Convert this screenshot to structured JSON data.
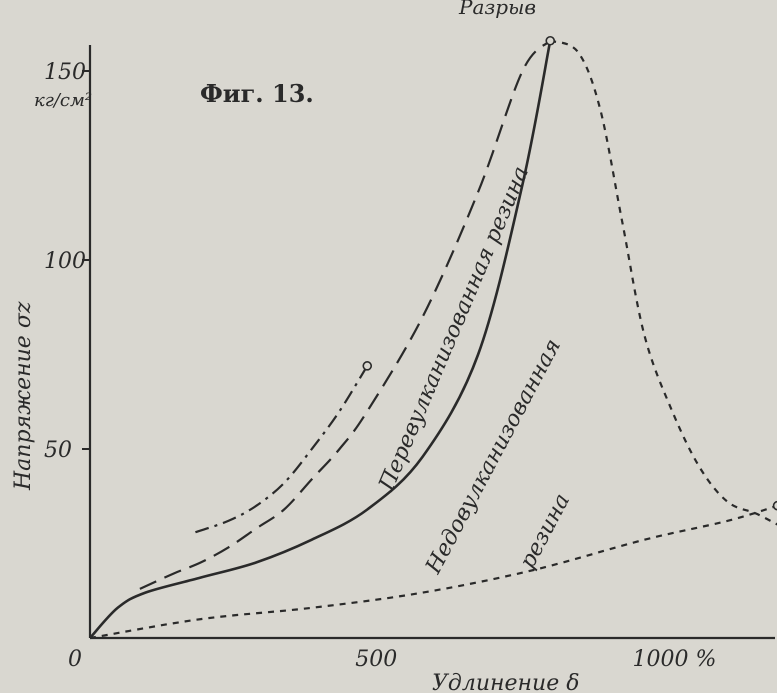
{
  "chart_data": {
    "type": "line",
    "title": "Фиг. 13.",
    "xlabel": "Удлинение δ",
    "ylabel": "Напряжение σz",
    "yunit": "кг/см²",
    "xlim": [
      0,
      1270
    ],
    "ylim": [
      0,
      160
    ],
    "x_ticks": [
      {
        "value": 0,
        "label": "0"
      },
      {
        "value": 500,
        "label": "500"
      },
      {
        "value": 1000,
        "label": "1000 %"
      }
    ],
    "y_ticks": [
      {
        "value": 50,
        "label": "50"
      },
      {
        "value": 100,
        "label": "100"
      },
      {
        "value": 150,
        "label": "150"
      }
    ],
    "annotations": {
      "rupture": "Разрыв",
      "overvulcanized": "Перевулканизованная резина",
      "undervulcanized_1": "Недовулканизованная",
      "undervulcanized_2": "резина"
    },
    "series": [
      {
        "name": "Перевулканизованная резина",
        "style": "solid",
        "points": [
          [
            0,
            0
          ],
          [
            50,
            8
          ],
          [
            100,
            12
          ],
          [
            200,
            16
          ],
          [
            300,
            20
          ],
          [
            400,
            26
          ],
          [
            500,
            34
          ],
          [
            600,
            48
          ],
          [
            700,
            75
          ],
          [
            780,
            120
          ],
          [
            830,
            158
          ]
        ]
      },
      {
        "style": "long-dash",
        "points": [
          [
            90,
            13
          ],
          [
            150,
            17
          ],
          [
            200,
            20
          ],
          [
            250,
            24
          ],
          [
            300,
            29
          ],
          [
            350,
            34
          ],
          [
            400,
            42
          ],
          [
            450,
            50
          ],
          [
            500,
            60
          ],
          [
            600,
            85
          ],
          [
            700,
            118
          ],
          [
            780,
            150
          ],
          [
            830,
            158
          ]
        ]
      },
      {
        "style": "dash-dot",
        "points": [
          [
            190,
            28
          ],
          [
            250,
            31
          ],
          [
            300,
            35
          ],
          [
            350,
            41
          ],
          [
            400,
            50
          ],
          [
            450,
            60
          ],
          [
            500,
            72
          ]
        ]
      },
      {
        "name": "Недовулканизованная резина",
        "style": "short-dash",
        "points": [
          [
            0,
            0
          ],
          [
            200,
            5
          ],
          [
            400,
            8
          ],
          [
            600,
            12
          ],
          [
            800,
            18
          ],
          [
            1000,
            26
          ],
          [
            1150,
            31
          ],
          [
            1240,
            35
          ]
        ]
      },
      {
        "style": "short-dash",
        "points": [
          [
            830,
            158
          ],
          [
            880,
            155
          ],
          [
            920,
            140
          ],
          [
            960,
            110
          ],
          [
            1000,
            80
          ],
          [
            1050,
            60
          ],
          [
            1100,
            45
          ],
          [
            1150,
            36
          ],
          [
            1200,
            33
          ],
          [
            1240,
            30
          ]
        ]
      }
    ],
    "markers": [
      {
        "x": 830,
        "y": 158
      },
      {
        "x": 1240,
        "y": 35
      },
      {
        "x": 500,
        "y": 72
      }
    ],
    "grid": false
  }
}
